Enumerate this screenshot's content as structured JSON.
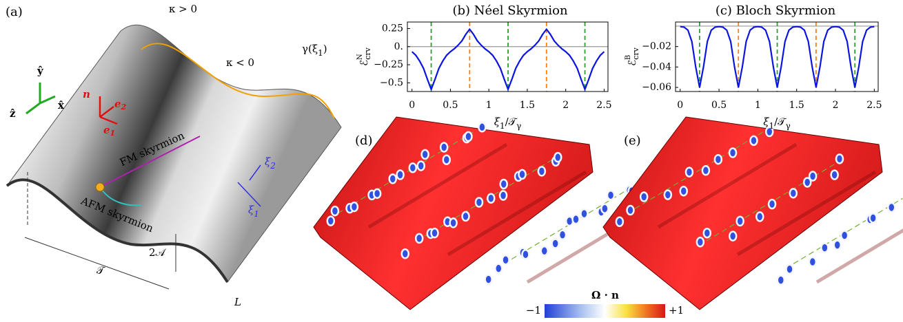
{
  "chart_data": [
    {
      "type": "line",
      "title": "(b) Néel Skyrmion",
      "ylabel": {
        "symbol": "ℰ",
        "sub": "crv",
        "sup": "N"
      },
      "xlabel": {
        "main": "ξ",
        "sub": "1",
        "rest": "/𝒯",
        "sub2": "γ"
      },
      "x": [
        0,
        0.05,
        0.1,
        0.15,
        0.2,
        0.25,
        0.3,
        0.35,
        0.4,
        0.45,
        0.5,
        0.55,
        0.6,
        0.65,
        0.7,
        0.75,
        0.8,
        0.85,
        0.9,
        0.95,
        1,
        1.05,
        1.1,
        1.15,
        1.2,
        1.25,
        1.3,
        1.35,
        1.4,
        1.45,
        1.5,
        1.55,
        1.6,
        1.65,
        1.7,
        1.75,
        1.8,
        1.85,
        1.9,
        1.95,
        2,
        2.05,
        2.1,
        2.15,
        2.2,
        2.25,
        2.3,
        2.35,
        2.4,
        2.45,
        2.5
      ],
      "series": [
        {
          "color": "#0a14e0",
          "values": [
            -0.07,
            -0.12,
            -0.2,
            -0.3,
            -0.45,
            -0.59,
            -0.45,
            -0.3,
            -0.2,
            -0.12,
            -0.07,
            -0.03,
            0.02,
            0.08,
            0.17,
            0.24,
            0.17,
            0.08,
            0.02,
            -0.03,
            -0.07,
            -0.12,
            -0.2,
            -0.3,
            -0.45,
            -0.59,
            -0.45,
            -0.3,
            -0.2,
            -0.12,
            -0.07,
            -0.03,
            0.02,
            0.08,
            0.17,
            0.24,
            0.17,
            0.08,
            0.02,
            -0.03,
            -0.07,
            -0.12,
            -0.2,
            -0.3,
            -0.45,
            -0.59,
            -0.45,
            -0.3,
            -0.2,
            -0.12,
            -0.07
          ]
        }
      ],
      "xlim": [
        -0.06,
        2.55
      ],
      "ylim": [
        -0.62,
        0.34
      ],
      "xticks": [
        0,
        0.5,
        1,
        1.5,
        2,
        2.5
      ],
      "yticks": [
        0.25,
        {
          "value": 0,
          "label": "0."
        },
        {
          "value": -0.25,
          "label": "−0.25"
        },
        {
          "value": -0.5,
          "label": "−0.5"
        }
      ],
      "hline": 0,
      "vlines": [
        {
          "x": 0.25,
          "color": "#2ca02c"
        },
        {
          "x": 0.75,
          "color": "#ff7f0e"
        },
        {
          "x": 1.25,
          "color": "#2ca02c"
        },
        {
          "x": 1.75,
          "color": "#ff7f0e"
        },
        {
          "x": 2.25,
          "color": "#2ca02c"
        }
      ]
    },
    {
      "type": "line",
      "title": "(c) Bloch Skyrmion",
      "ylabel": {
        "symbol": "ℰ",
        "sub": "crv",
        "sup": "B"
      },
      "xlabel": {
        "main": "ξ",
        "sub": "1",
        "rest": "/𝒯",
        "sub2": "γ"
      },
      "x": [
        0,
        0.05,
        0.1,
        0.15,
        0.2,
        0.25,
        0.3,
        0.35,
        0.4,
        0.45,
        0.5,
        0.55,
        0.6,
        0.65,
        0.7,
        0.75,
        0.8,
        0.85,
        0.9,
        0.95,
        1,
        1.05,
        1.1,
        1.15,
        1.2,
        1.25,
        1.3,
        1.35,
        1.4,
        1.45,
        1.5,
        1.55,
        1.6,
        1.65,
        1.7,
        1.75,
        1.8,
        1.85,
        1.9,
        1.95,
        2,
        2.05,
        2.1,
        2.15,
        2.2,
        2.25,
        2.3,
        2.35,
        2.4,
        2.45,
        2.5
      ],
      "series": [
        {
          "color": "#0a14e0",
          "values": [
            -0.0005,
            -0.001,
            -0.004,
            -0.015,
            -0.04,
            -0.06,
            -0.04,
            -0.015,
            -0.004,
            -0.001,
            -0.0005,
            -0.001,
            -0.004,
            -0.015,
            -0.04,
            -0.06,
            -0.04,
            -0.015,
            -0.004,
            -0.001,
            -0.0005,
            -0.001,
            -0.004,
            -0.015,
            -0.04,
            -0.06,
            -0.04,
            -0.015,
            -0.004,
            -0.001,
            -0.0005,
            -0.001,
            -0.004,
            -0.015,
            -0.04,
            -0.06,
            -0.04,
            -0.015,
            -0.004,
            -0.001,
            -0.0005,
            -0.001,
            -0.004,
            -0.015,
            -0.04,
            -0.06,
            -0.04,
            -0.015,
            -0.004,
            -0.001,
            -0.0005
          ]
        }
      ],
      "xlim": [
        -0.06,
        2.55
      ],
      "ylim": [
        -0.064,
        0.004
      ],
      "xticks": [
        0,
        0.5,
        1,
        1.5,
        2,
        2.5
      ],
      "yticks": [
        {
          "value": -0.02,
          "label": "−0.02"
        },
        {
          "value": -0.04,
          "label": "−0.04"
        },
        {
          "value": -0.06,
          "label": "−0.06"
        }
      ],
      "hline": 0,
      "vlines": [
        {
          "x": 0.25,
          "color": "#2ca02c"
        },
        {
          "x": 0.75,
          "color": "#ff7f0e"
        },
        {
          "x": 1.25,
          "color": "#2ca02c"
        },
        {
          "x": 1.75,
          "color": "#ff7f0e"
        },
        {
          "x": 2.25,
          "color": "#2ca02c"
        }
      ]
    }
  ],
  "panel_a": {
    "label": "(a)",
    "kappa_pos": "κ > 0",
    "kappa_neg": "κ < 0",
    "gamma": {
      "text": "γ(ξ",
      "sub": "1",
      "end": ")"
    },
    "y_hat": "ŷ",
    "x_hat": "x̂",
    "z_hat": "ẑ",
    "n": "n",
    "e2": {
      "main": "e",
      "sub": "2"
    },
    "e1": {
      "main": "e",
      "sub": "1"
    },
    "fm": "FM skyrmion",
    "afm": "AFM skyrmion",
    "xi2": {
      "main": "ξ",
      "sub": "2"
    },
    "xi1": {
      "main": "ξ",
      "sub": "1"
    },
    "amplitude": "2𝒜",
    "period": "𝒯",
    "thickness": "L"
  },
  "panel_d": {
    "label": "(d)"
  },
  "panel_e": {
    "label": "(e)"
  },
  "colorbar": {
    "title": "Ω · n",
    "min_label": "−1",
    "max_label": "+1"
  }
}
